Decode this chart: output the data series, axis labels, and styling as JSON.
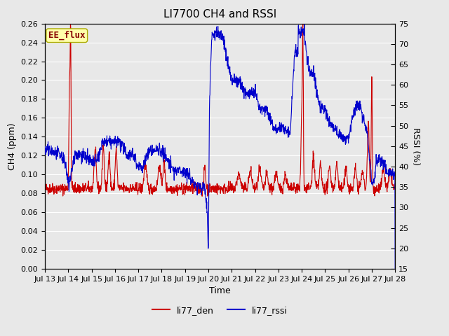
{
  "title": "LI7700 CH4 and RSSI",
  "xlabel": "Time",
  "ylabel_left": "CH4 (ppm)",
  "ylabel_right": "RSSI (%)",
  "xlim": [
    0,
    15
  ],
  "ylim_left": [
    0.0,
    0.26
  ],
  "ylim_right": [
    15,
    75
  ],
  "yticks_left": [
    0.0,
    0.02,
    0.04,
    0.06,
    0.08,
    0.1,
    0.12,
    0.14,
    0.16,
    0.18,
    0.2,
    0.22,
    0.24,
    0.26
  ],
  "yticks_right": [
    15,
    20,
    25,
    30,
    35,
    40,
    45,
    50,
    55,
    60,
    65,
    70,
    75
  ],
  "xtick_labels": [
    "Jul 13",
    "Jul 14",
    "Jul 15",
    "Jul 16",
    "Jul 17",
    "Jul 18",
    "Jul 19",
    "Jul 20",
    "Jul 21",
    "Jul 22",
    "Jul 23",
    "Jul 24",
    "Jul 25",
    "Jul 26",
    "Jul 27",
    "Jul 28"
  ],
  "color_ch4": "#cc0000",
  "color_rssi": "#0000cc",
  "line_width": 0.8,
  "legend_items": [
    "li77_den",
    "li77_rssi"
  ],
  "annotation_text": "EE_flux",
  "annotation_color": "#880000",
  "annotation_bg": "#ffffaa",
  "annotation_border": "#aaaa00",
  "background_color": "#e8e8e8",
  "grid_color": "#ffffff",
  "title_fontsize": 11,
  "axis_fontsize": 9,
  "tick_fontsize": 8
}
